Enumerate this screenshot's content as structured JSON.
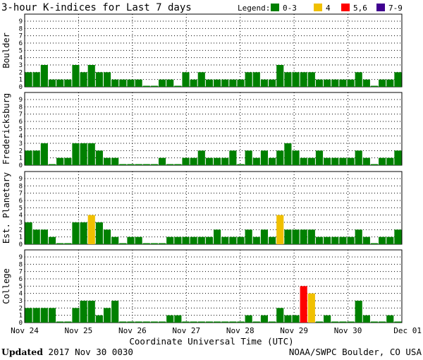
{
  "chart_data": {
    "type": "bar",
    "title": "3-hour K-indices for Last 7 days",
    "legend_title": "Legend:",
    "legend": [
      {
        "label": "0-3",
        "color": "#008000"
      },
      {
        "label": "4",
        "color": "#f0c000"
      },
      {
        "label": "5,6",
        "color": "#ff0000"
      },
      {
        "label": "7-9",
        "color": "#400090"
      }
    ],
    "xlabel": "Coordinate Universal Time (UTC)",
    "x_ticks": [
      "Nov 24",
      "Nov 25",
      "Nov 26",
      "Nov 27",
      "Nov 28",
      "Nov 29",
      "Nov 30",
      "Dec 01"
    ],
    "y_ticks": [
      0,
      1,
      2,
      3,
      4,
      5,
      6,
      7,
      8,
      9
    ],
    "ylim": [
      0,
      9
    ],
    "grid": true,
    "series": [
      {
        "name": "Boulder",
        "values": [
          2,
          2,
          3,
          1,
          1,
          1,
          3,
          2,
          3,
          2,
          2,
          1,
          1,
          1,
          1,
          0,
          0,
          1,
          1,
          0,
          2,
          1,
          2,
          1,
          1,
          1,
          1,
          1,
          2,
          2,
          1,
          1,
          3,
          2,
          2,
          2,
          2,
          1,
          1,
          1,
          1,
          1,
          2,
          1,
          0,
          1,
          1,
          2
        ]
      },
      {
        "name": "Fredericksburg",
        "values": [
          2,
          2,
          3,
          0,
          1,
          1,
          3,
          3,
          3,
          2,
          1,
          1,
          0,
          0,
          0,
          0,
          0,
          1,
          0,
          0,
          1,
          1,
          2,
          1,
          1,
          1,
          2,
          0,
          2,
          1,
          2,
          1,
          2,
          3,
          2,
          1,
          1,
          2,
          1,
          1,
          1,
          1,
          2,
          1,
          0,
          1,
          1,
          2
        ]
      },
      {
        "name": "Est. Planetary",
        "values": [
          3,
          2,
          2,
          1,
          0,
          0,
          3,
          3,
          4,
          3,
          2,
          1,
          0,
          1,
          1,
          0,
          0,
          0,
          1,
          1,
          1,
          1,
          1,
          1,
          2,
          1,
          1,
          1,
          2,
          1,
          2,
          1,
          4,
          2,
          2,
          2,
          2,
          1,
          1,
          1,
          1,
          1,
          2,
          1,
          0,
          1,
          1,
          2
        ]
      },
      {
        "name": "College",
        "values": [
          2,
          2,
          2,
          2,
          0,
          0,
          2,
          3,
          3,
          1,
          2,
          3,
          0,
          0,
          0,
          0,
          0,
          0,
          1,
          1,
          0,
          0,
          0,
          0,
          0,
          0,
          0,
          0,
          1,
          0,
          1,
          0,
          2,
          1,
          1,
          5,
          4,
          0,
          1,
          0,
          0,
          0,
          3,
          1,
          0,
          0,
          1,
          0
        ]
      }
    ],
    "color_scale": [
      {
        "max": 3,
        "color": "#008000"
      },
      {
        "max": 4,
        "color": "#f0c000"
      },
      {
        "max": 6,
        "color": "#ff0000"
      },
      {
        "max": 9,
        "color": "#400090"
      }
    ]
  },
  "footer": {
    "updated_label": "Updated",
    "updated_value": "2017 Nov 30 0030",
    "source": "NOAA/SWPC Boulder, CO USA"
  }
}
